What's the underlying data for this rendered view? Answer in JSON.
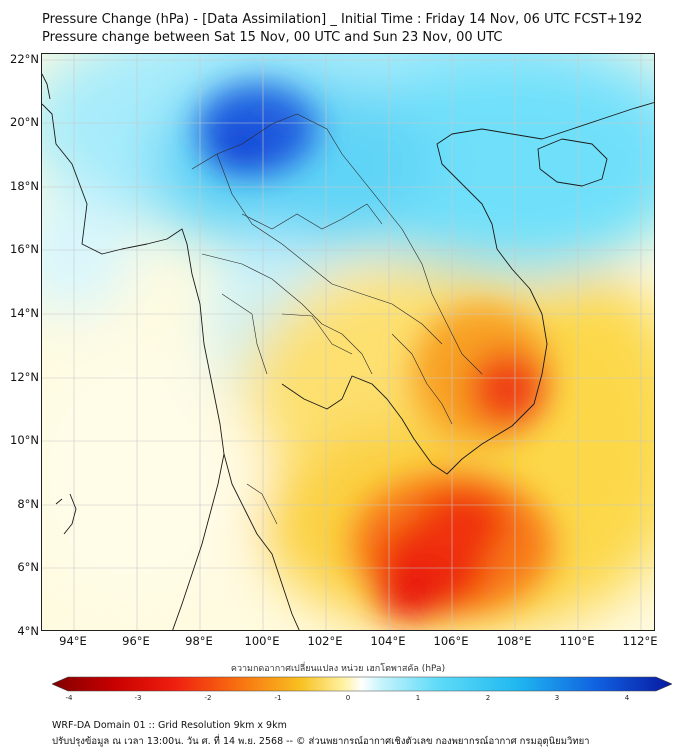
{
  "title": {
    "line1": "Pressure Change (hPa) - [Data Assimilation] _ Initial Time : Friday 14 Nov, 06 UTC FCST+192",
    "line2": "Pressure change between Sat 15 Nov, 00 UTC and Sun 23 Nov, 00 UTC"
  },
  "axes": {
    "lat_labels": [
      "22°N",
      "20°N",
      "18°N",
      "16°N",
      "14°N",
      "12°N",
      "10°N",
      "8°N",
      "6°N",
      "4°N"
    ],
    "lon_labels": [
      "94°E",
      "96°E",
      "98°E",
      "100°E",
      "102°E",
      "104°E",
      "106°E",
      "108°E",
      "110°E",
      "112°E"
    ],
    "lat_range": [
      4,
      22
    ],
    "lon_range": [
      93,
      112.4
    ]
  },
  "colorbar": {
    "title": "ความกดอากาศเปลี่ยนแปลง หน่วย เฮกโตพาสคัล (hPa)",
    "ticks": [
      "-4",
      "-3",
      "-2",
      "-1",
      "0",
      "1",
      "2",
      "3",
      "4"
    ],
    "range": [
      -4,
      4
    ]
  },
  "footer": {
    "line1": "WRF-DA Domain 01 :: Grid Resolution 9km x 9km",
    "line2": "ปรับปรุงข้อมูล ณ เวลา 13:00น. วัน ศ. ที่ 14 พ.ย. 2568 -- © ส่วนพยากรณ์อากาศเชิงตัวเลข กองพยากรณ์อากาศ กรมอุตุนิยมวิทยา"
  },
  "colors": {
    "blue_max": "#1030c8",
    "cyan": "#40d8f8",
    "light_cyan": "#b8f0fc",
    "neutral": "#ffffff",
    "light_yellow": "#fff0a0",
    "yellow": "#f8d020",
    "orange": "#f08010",
    "red": "#e81010",
    "dark_red": "#a00000"
  },
  "features": {
    "blue_low_center": "north-central over northern Laos / Thailand (~20.5N 100E)",
    "red_high_centers": [
      "Gulf of Thailand south (~5.5N 105E)",
      "southern Vietnam (~11.5N 108E)"
    ]
  }
}
